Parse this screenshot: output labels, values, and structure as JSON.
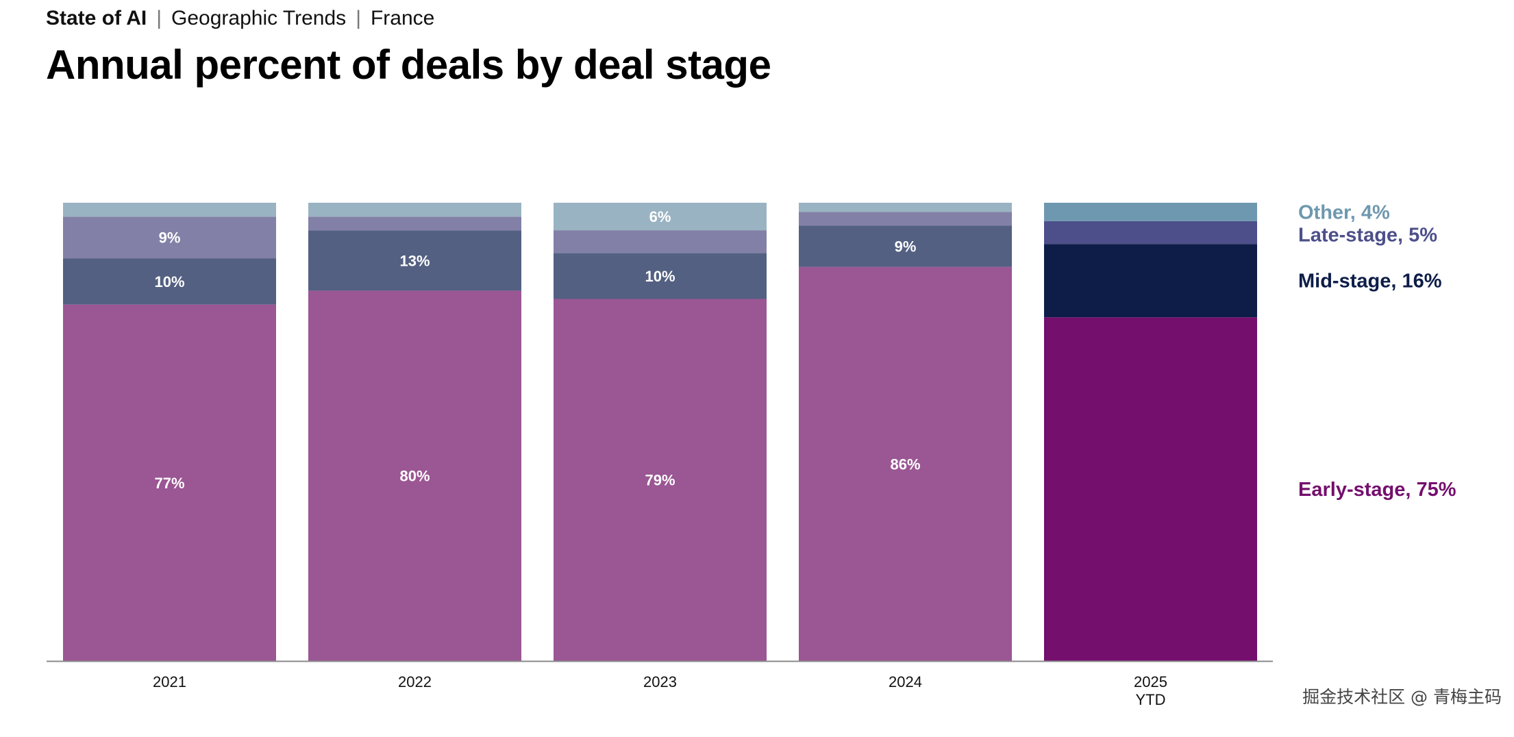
{
  "header": {
    "breadcrumb": [
      "State of AI",
      "Geographic Trends",
      "France"
    ],
    "title": "Annual percent of deals by deal stage"
  },
  "chart_data": {
    "type": "bar",
    "stacked": true,
    "title": "Annual percent of deals by deal stage",
    "xlabel": "",
    "ylabel": "",
    "ylim": [
      0,
      100
    ],
    "grid": false,
    "legend_placement": "right",
    "categories": [
      "2021",
      "2022",
      "2023",
      "2024",
      "2025\nYTD"
    ],
    "series": [
      {
        "name": "Early-stage",
        "values": [
          77,
          80,
          79,
          86,
          75
        ],
        "labels": [
          "77%",
          "80%",
          "79%",
          "86%",
          ""
        ],
        "color": "#9b5694",
        "highlight_color": "#740f6d"
      },
      {
        "name": "Mid-stage",
        "values": [
          10,
          13,
          10,
          9,
          16
        ],
        "labels": [
          "10%",
          "13%",
          "10%",
          "9%",
          ""
        ],
        "color": "#536081",
        "highlight_color": "#0d1d48"
      },
      {
        "name": "Late-stage",
        "values": [
          9,
          3,
          5,
          3,
          5
        ],
        "labels": [
          "9%",
          "",
          "",
          "",
          ""
        ],
        "color": "#8280a6",
        "highlight_color": "#4c4f89"
      },
      {
        "name": "Other",
        "values": [
          3,
          3,
          6,
          2,
          4
        ],
        "labels": [
          "",
          "",
          "6%",
          "",
          ""
        ],
        "color": "#99b3c2",
        "highlight_color": "#6e98af"
      }
    ],
    "highlight_category_index": 4,
    "legend": [
      {
        "label": "Other, 4%",
        "color": "#6e98af"
      },
      {
        "label": "Late-stage, 5%",
        "color": "#4c4f89"
      },
      {
        "label": "Mid-stage, 16%",
        "color": "#0d1d48"
      },
      {
        "label": "Early-stage, 75%",
        "color": "#740f6d"
      }
    ]
  },
  "watermark": "掘金技术社区 @ 青梅主码"
}
